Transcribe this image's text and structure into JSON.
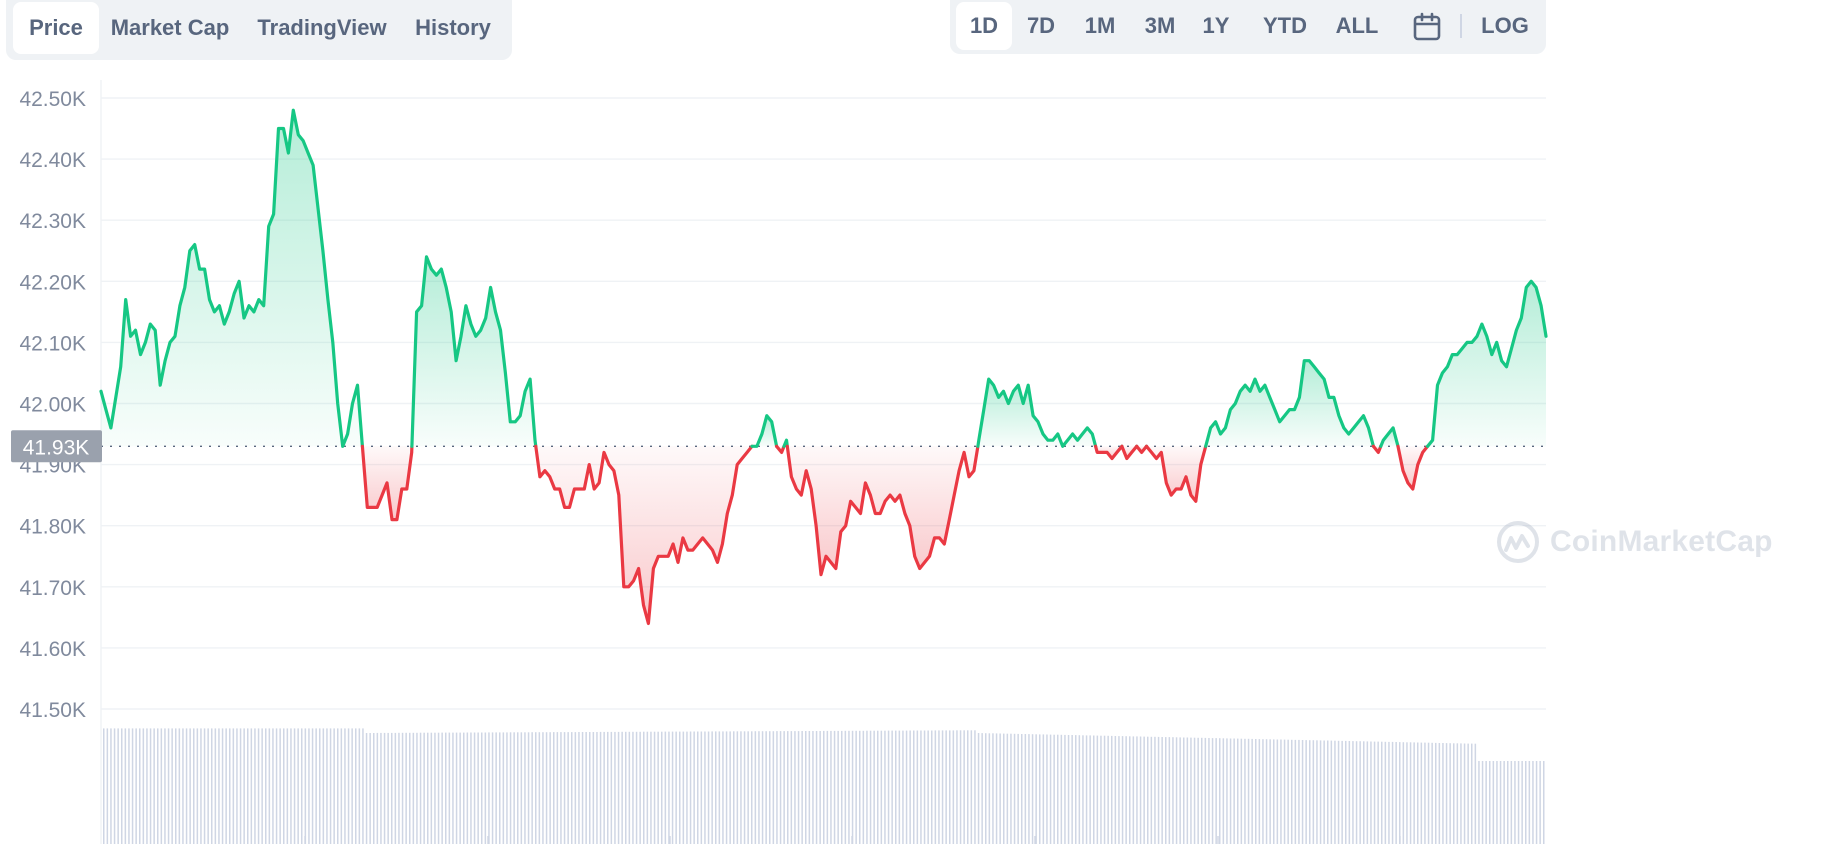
{
  "tabs": [
    {
      "label": "Price",
      "active": true
    },
    {
      "label": "Market Cap",
      "active": false
    },
    {
      "label": "TradingView",
      "active": false
    },
    {
      "label": "History",
      "active": false
    }
  ],
  "ranges": [
    {
      "label": "1D",
      "active": true
    },
    {
      "label": "7D",
      "active": false
    },
    {
      "label": "1M",
      "active": false
    },
    {
      "label": "3M",
      "active": false
    },
    {
      "label": "1Y",
      "active": false
    },
    {
      "label": "YTD",
      "active": false
    },
    {
      "label": "ALL",
      "active": false
    }
  ],
  "calendar_icon": "calendar-icon",
  "log_label": "LOG",
  "watermark": {
    "text": "CoinMarketCap",
    "icon": "coinmarketcap-logo-icon"
  },
  "colors": {
    "up": "#16c784",
    "down": "#ea3943",
    "grid": "#eff2f5",
    "volume": "#cfd6e4",
    "current_badge": "#9aa1ad"
  },
  "chart_data": {
    "type": "line",
    "title": "",
    "xlabel": "",
    "ylabel": "",
    "ylim": [
      41.5,
      42.55
    ],
    "y_ticks": [
      "42.50K",
      "42.40K",
      "42.30K",
      "42.20K",
      "42.10K",
      "42.00K",
      "41.90K",
      "41.80K",
      "41.70K",
      "41.60K",
      "41.50K"
    ],
    "y_tick_values": [
      42.5,
      42.4,
      42.3,
      42.2,
      42.1,
      42.0,
      41.9,
      41.8,
      41.7,
      41.6,
      41.5
    ],
    "baseline": 41.93,
    "baseline_label": "41.93K",
    "grid": true,
    "fill_to_baseline": true,
    "series": [
      {
        "values": [
          42.02,
          41.99,
          41.96,
          42.01,
          42.06,
          42.17,
          42.11,
          42.12,
          42.08,
          42.1,
          42.13,
          42.12,
          42.03,
          42.07,
          42.1,
          42.11,
          42.16,
          42.19,
          42.25,
          42.26,
          42.22,
          42.22,
          42.17,
          42.15,
          42.16,
          42.13,
          42.15,
          42.18,
          42.2,
          42.14,
          42.16,
          42.15,
          42.17,
          42.16,
          42.29,
          42.31,
          42.45,
          42.45,
          42.41,
          42.48,
          42.44,
          42.43,
          42.41,
          42.39,
          42.32,
          42.25,
          42.17,
          42.1,
          42.0,
          41.93,
          41.95,
          42.0,
          42.03,
          41.93,
          41.83,
          41.83,
          41.83,
          41.85,
          41.87,
          41.81,
          41.81,
          41.86,
          41.86,
          41.92,
          42.15,
          42.16,
          42.24,
          42.22,
          42.21,
          42.22,
          42.19,
          42.15,
          42.07,
          42.11,
          42.16,
          42.13,
          42.11,
          42.12,
          42.14,
          42.19,
          42.15,
          42.12,
          42.05,
          41.97,
          41.97,
          41.98,
          42.02,
          42.04,
          41.94,
          41.88,
          41.89,
          41.88,
          41.86,
          41.86,
          41.83,
          41.83,
          41.86,
          41.86,
          41.86,
          41.9,
          41.86,
          41.87,
          41.92,
          41.9,
          41.89,
          41.85,
          41.7,
          41.7,
          41.71,
          41.73,
          41.67,
          41.64,
          41.73,
          41.75,
          41.75,
          41.75,
          41.77,
          41.74,
          41.78,
          41.76,
          41.76,
          41.77,
          41.78,
          41.77,
          41.76,
          41.74,
          41.77,
          41.82,
          41.85,
          41.9,
          41.91,
          41.92,
          41.93,
          41.93,
          41.95,
          41.98,
          41.97,
          41.93,
          41.92,
          41.94,
          41.88,
          41.86,
          41.85,
          41.89,
          41.86,
          41.8,
          41.72,
          41.75,
          41.74,
          41.73,
          41.79,
          41.8,
          41.84,
          41.83,
          41.82,
          41.87,
          41.85,
          41.82,
          41.82,
          41.84,
          41.85,
          41.84,
          41.85,
          41.82,
          41.8,
          41.75,
          41.73,
          41.74,
          41.75,
          41.78,
          41.78,
          41.77,
          41.81,
          41.85,
          41.89,
          41.92,
          41.88,
          41.89,
          41.94,
          41.99,
          42.04,
          42.03,
          42.01,
          42.02,
          42.0,
          42.02,
          42.03,
          42.0,
          42.03,
          41.98,
          41.97,
          41.95,
          41.94,
          41.94,
          41.95,
          41.93,
          41.94,
          41.95,
          41.94,
          41.95,
          41.96,
          41.95,
          41.92,
          41.92,
          41.92,
          41.91,
          41.92,
          41.93,
          41.91,
          41.92,
          41.93,
          41.92,
          41.93,
          41.92,
          41.91,
          41.92,
          41.87,
          41.85,
          41.86,
          41.86,
          41.88,
          41.85,
          41.84,
          41.9,
          41.93,
          41.96,
          41.97,
          41.95,
          41.96,
          41.99,
          42.0,
          42.02,
          42.03,
          42.02,
          42.04,
          42.02,
          42.03,
          42.01,
          41.99,
          41.97,
          41.98,
          41.99,
          41.99,
          42.01,
          42.07,
          42.07,
          42.06,
          42.05,
          42.04,
          42.01,
          42.01,
          41.98,
          41.96,
          41.95,
          41.96,
          41.97,
          41.98,
          41.96,
          41.93,
          41.92,
          41.94,
          41.95,
          41.96,
          41.93,
          41.89,
          41.87,
          41.86,
          41.9,
          41.92,
          41.93,
          41.94,
          42.03,
          42.05,
          42.06,
          42.08,
          42.08,
          42.09,
          42.1,
          42.1,
          42.11,
          42.13,
          42.11,
          42.08,
          42.1,
          42.07,
          42.06,
          42.09,
          42.12,
          42.14,
          42.19,
          42.2,
          42.19,
          42.16,
          42.11
        ]
      }
    ],
    "volume_relative": {
      "segments": [
        [
          0.96,
          0.92
        ],
        [
          0.8,
          0.95
        ],
        [
          0.85,
          1.0
        ]
      ]
    }
  }
}
